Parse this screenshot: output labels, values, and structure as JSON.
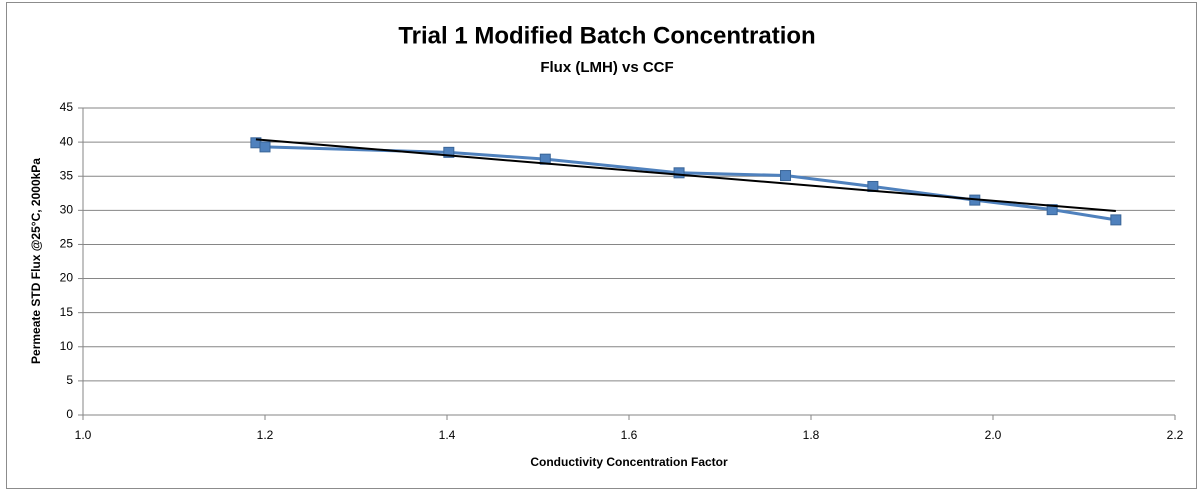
{
  "chart_data": {
    "type": "scatter",
    "title": "Trial 1 Modified Batch Concentration",
    "subtitle": "Flux (LMH) vs CCF",
    "x_label": "Conductivity Concentration Factor",
    "y_label": "Permeate STD Flux @25°C, 2000kPa",
    "x": [
      1.19,
      1.2,
      1.402,
      1.508,
      1.655,
      1.772,
      1.868,
      1.98,
      2.065,
      2.135
    ],
    "series": [
      {
        "color": "#4f81bd",
        "values": [
          39.9,
          39.3,
          38.5,
          37.5,
          35.5,
          35.1,
          33.5,
          31.5,
          30.1,
          28.6
        ]
      }
    ],
    "trendline": {
      "x": [
        1.19,
        2.135
      ],
      "values": [
        40.4,
        29.9
      ],
      "color": "#000000"
    },
    "xlim": [
      1.0,
      2.2
    ],
    "xticks": [
      {
        "value": 1.0,
        "label": "1.0"
      },
      1.2,
      1.4,
      1.6,
      1.8,
      {
        "value": 2.0,
        "label": "2.0"
      },
      2.2
    ],
    "ylim": [
      0,
      45
    ],
    "yticks": [
      0,
      5,
      10,
      15,
      20,
      25,
      30,
      35,
      40,
      45
    ],
    "grid": true
  }
}
